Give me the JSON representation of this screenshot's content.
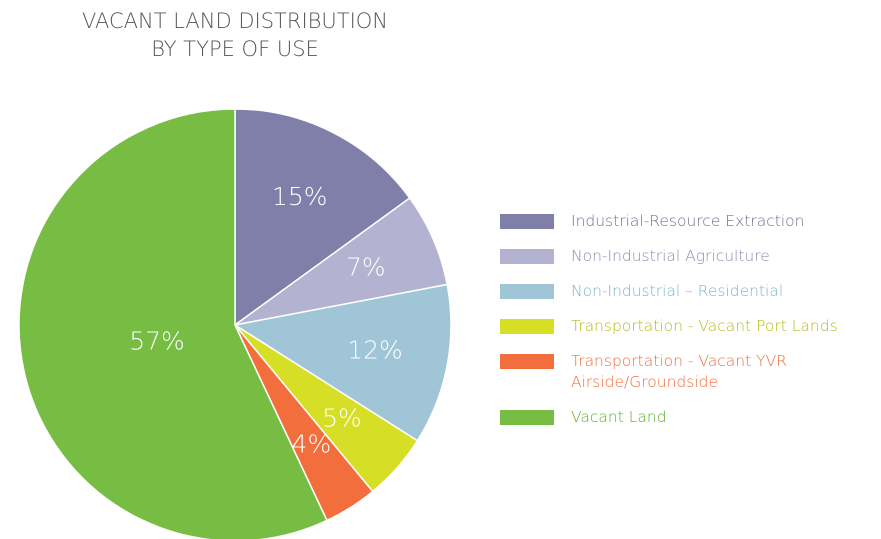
{
  "chart_data": {
    "type": "pie",
    "title": [
      "VACANT LAND DISTRIBUTION",
      "BY TYPE OF USE"
    ],
    "categories": [
      "Industrial-Resource Extraction",
      "Non-Industrial Agriculture",
      "Non-Industrial – Residential",
      "Transportation - Vacant Port Lands",
      "Transportation - Vacant YVR Airside/Groundside",
      "Vacant Land"
    ],
    "values": [
      15,
      7,
      12,
      5,
      4,
      57
    ],
    "value_labels": [
      "15%",
      "7%",
      "12%",
      "5%",
      "4%",
      "57%"
    ],
    "colors": [
      "#7f7fa9",
      "#b3b2d1",
      "#9fc5d7",
      "#d6de26",
      "#f26e3c",
      "#77bd43"
    ],
    "label_colors": [
      "#6e6e98",
      "#8e8db2",
      "#7fb3cb",
      "#b3bd17",
      "#f26e3c",
      "#5faf2d"
    ],
    "legend": "right"
  }
}
